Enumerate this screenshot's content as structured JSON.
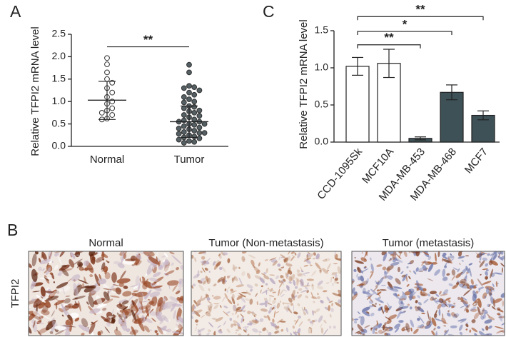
{
  "chart_data": [
    {
      "type": "dot",
      "panel": "A",
      "ylabel": "Relative TFPI2 mRNA level",
      "categories": [
        "Normal",
        "Tumor"
      ],
      "groups": [
        {
          "color": "#ffffff",
          "edge": "#333333",
          "values": [
            1.97,
            1.83,
            1.65,
            1.5,
            1.42,
            1.3,
            1.2,
            1.1,
            1.0,
            0.95,
            0.85,
            0.8,
            0.75,
            0.7,
            0.62,
            0.6
          ],
          "mean": 1.03,
          "sd_low": 0.6,
          "sd_high": 1.45
        },
        {
          "color": "#556064",
          "edge": "#333333",
          "values": [
            1.82,
            1.65,
            1.35,
            1.32,
            1.3,
            1.25,
            1.2,
            1.15,
            1.1,
            1.05,
            1.0,
            0.98,
            0.9,
            0.88,
            0.85,
            0.8,
            0.78,
            0.75,
            0.7,
            0.68,
            0.65,
            0.6,
            0.58,
            0.55,
            0.55,
            0.5,
            0.5,
            0.48,
            0.45,
            0.42,
            0.4,
            0.38,
            0.35,
            0.32,
            0.3,
            0.3,
            0.28,
            0.25,
            0.22,
            0.2,
            0.18,
            0.15,
            0.12,
            0.1,
            0.08
          ],
          "mean": 0.55,
          "sd_low": 0.2,
          "sd_high": 0.9
        }
      ],
      "ylim": [
        0,
        2.5
      ],
      "yticks": [
        {
          "value": 0,
          "label": "0.0"
        },
        0.5,
        {
          "value": 1,
          "label": "1.0"
        },
        1.5,
        {
          "value": 2,
          "label": "2.0"
        },
        2.5
      ],
      "significance": [
        {
          "from": 0,
          "to": 1,
          "label": "**",
          "y": 2.22
        }
      ]
    },
    {
      "type": "bar",
      "panel": "C",
      "ylabel": "Relative TFPI2 mRNA level",
      "categories": [
        "CCD-1095Sk",
        "MCF10A",
        "MDA-MB-453",
        "MDA-MB-468",
        "MCF7"
      ],
      "values": [
        1.02,
        1.06,
        0.05,
        0.67,
        0.36
      ],
      "errors": [
        0.12,
        0.19,
        0.02,
        0.1,
        0.06
      ],
      "colors": [
        "#ffffff",
        "#ffffff",
        "#3e5157",
        "#3e5157",
        "#3e5157"
      ],
      "ylim": [
        0,
        1.5
      ],
      "yticks": [
        {
          "value": 0,
          "label": "0.0"
        },
        0.5,
        {
          "value": 1,
          "label": "1.0"
        },
        1.5
      ],
      "significance": [
        {
          "from": 0,
          "to": 2,
          "label": "**",
          "y": 1.31
        },
        {
          "from": 0,
          "to": 3,
          "label": "*",
          "y": 1.49
        },
        {
          "from": 0,
          "to": 4,
          "label": "**",
          "y": 1.69
        }
      ]
    }
  ],
  "panel_b": {
    "label": "B",
    "row_label": "TFPI2",
    "images": [
      {
        "title": "Normal"
      },
      {
        "title": "Tumor (Non-metastasis)"
      },
      {
        "title": "Tumor (metastasis)"
      }
    ]
  }
}
